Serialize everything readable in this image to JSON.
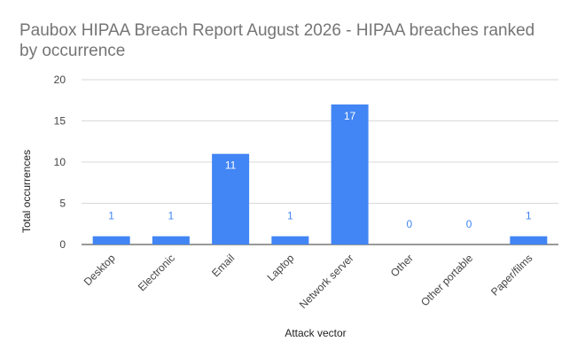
{
  "chart_data": {
    "type": "bar",
    "title_lines": [
      "Paubox HIPAA Breach Report August 2026 - HIPAA breaches ranked",
      "by occurrence"
    ],
    "categories": [
      "Desktop",
      "Electronic",
      "Email",
      "Laptop",
      "Network server",
      "Other",
      "Other portable",
      "Paper/films"
    ],
    "values": [
      1,
      1,
      11,
      1,
      17,
      0,
      0,
      1
    ],
    "xlabel": "Attack vector",
    "ylabel": "Total occurrences",
    "ylim": [
      0,
      20
    ],
    "yticks": [
      0,
      5,
      10,
      15,
      20
    ],
    "grid": true,
    "legend": "none",
    "data_labels": true,
    "colors": {
      "bar": "#4285f4",
      "label_outside": "#4285f4",
      "label_inside": "#ffffff",
      "gridline": "#d9d9d9",
      "baseline": "#333333",
      "title": "#757575"
    }
  }
}
